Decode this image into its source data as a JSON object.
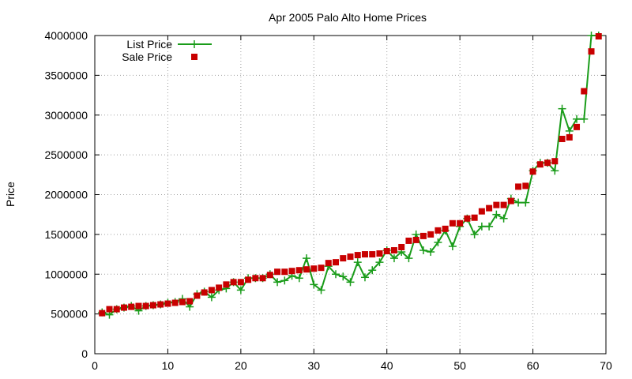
{
  "chart_data": {
    "type": "line",
    "title": "Apr 2005 Palo Alto Home Prices",
    "xlabel": "",
    "ylabel": "Price",
    "xlim": [
      0,
      70
    ],
    "ylim": [
      0,
      4000000
    ],
    "xticks": [
      0,
      10,
      20,
      30,
      40,
      50,
      60,
      70
    ],
    "yticks": [
      0,
      500000,
      1000000,
      1500000,
      2000000,
      2500000,
      3000000,
      3500000,
      4000000
    ],
    "grid": true,
    "legend_position": "top-left",
    "series": [
      {
        "name": "List Price",
        "style": "line-with-plus-points",
        "color": "#1a9c1a",
        "x": [
          1,
          2,
          3,
          4,
          5,
          6,
          7,
          8,
          9,
          10,
          11,
          12,
          13,
          14,
          15,
          16,
          17,
          18,
          19,
          20,
          21,
          22,
          23,
          24,
          25,
          26,
          27,
          28,
          29,
          30,
          31,
          32,
          33,
          34,
          35,
          36,
          37,
          38,
          39,
          40,
          41,
          42,
          43,
          44,
          45,
          46,
          47,
          48,
          49,
          50,
          51,
          52,
          53,
          54,
          55,
          56,
          57,
          58,
          59,
          60,
          61,
          62,
          63,
          64,
          65,
          66,
          67,
          68,
          69
        ],
        "y": [
          520000,
          490000,
          560000,
          580000,
          600000,
          540000,
          600000,
          610000,
          620000,
          640000,
          650000,
          690000,
          590000,
          750000,
          780000,
          710000,
          800000,
          820000,
          900000,
          800000,
          950000,
          950000,
          950000,
          1000000,
          900000,
          920000,
          980000,
          950000,
          1200000,
          870000,
          800000,
          1100000,
          1000000,
          970000,
          900000,
          1150000,
          960000,
          1050000,
          1150000,
          1300000,
          1200000,
          1280000,
          1200000,
          1500000,
          1300000,
          1280000,
          1400000,
          1550000,
          1350000,
          1600000,
          1700000,
          1500000,
          1600000,
          1600000,
          1750000,
          1700000,
          1950000,
          1900000,
          1900000,
          2300000,
          2400000,
          2400000,
          2300000,
          3080000,
          2800000,
          2950000,
          2950000,
          4000000,
          4000000
        ]
      },
      {
        "name": "Sale Price",
        "style": "square-points",
        "color": "#c80000",
        "x": [
          1,
          2,
          3,
          4,
          5,
          6,
          7,
          8,
          9,
          10,
          11,
          12,
          13,
          14,
          15,
          16,
          17,
          18,
          19,
          20,
          21,
          22,
          23,
          24,
          25,
          26,
          27,
          28,
          29,
          30,
          31,
          32,
          33,
          34,
          35,
          36,
          37,
          38,
          39,
          40,
          41,
          42,
          43,
          44,
          45,
          46,
          47,
          48,
          49,
          50,
          51,
          52,
          53,
          54,
          55,
          56,
          57,
          58,
          59,
          60,
          61,
          62,
          63,
          64,
          65,
          66,
          67,
          68,
          69
        ],
        "y": [
          510000,
          560000,
          560000,
          580000,
          590000,
          600000,
          600000,
          610000,
          620000,
          630000,
          640000,
          650000,
          660000,
          730000,
          770000,
          800000,
          830000,
          870000,
          900000,
          900000,
          930000,
          950000,
          950000,
          990000,
          1030000,
          1030000,
          1040000,
          1050000,
          1060000,
          1070000,
          1080000,
          1140000,
          1150000,
          1200000,
          1220000,
          1240000,
          1250000,
          1250000,
          1260000,
          1290000,
          1300000,
          1340000,
          1420000,
          1430000,
          1480000,
          1500000,
          1550000,
          1570000,
          1640000,
          1640000,
          1700000,
          1710000,
          1790000,
          1830000,
          1870000,
          1870000,
          1920000,
          2100000,
          2110000,
          2290000,
          2380000,
          2400000,
          2420000,
          2700000,
          2720000,
          2850000,
          3300000,
          3800000,
          3990000
        ]
      }
    ]
  }
}
